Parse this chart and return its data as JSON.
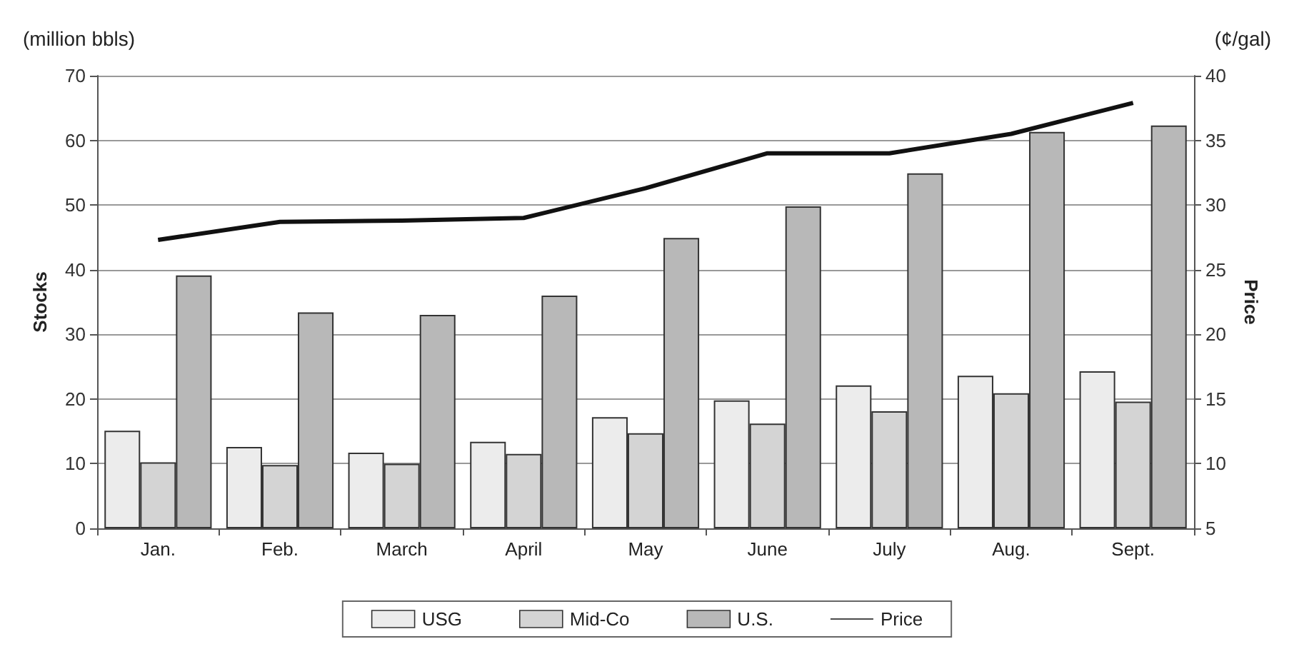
{
  "chart_data": {
    "type": "bar",
    "categories": [
      "Jan.",
      "Feb.",
      "March",
      "April",
      "May",
      "June",
      "July",
      "Aug.",
      "Sept."
    ],
    "ylabel": "Stocks",
    "y2label": "Price",
    "annotations": [
      "(million bbls)",
      "(¢/gal)"
    ],
    "series": [
      {
        "name": "USG",
        "color": "#ececec",
        "values": [
          15.1,
          12.6,
          11.7,
          13.4,
          17.2,
          19.8,
          22.1,
          23.6,
          24.3
        ]
      },
      {
        "name": "Mid-Co",
        "color": "#d4d4d4",
        "values": [
          10.2,
          9.8,
          10,
          11.5,
          14.7,
          16.2,
          18.1,
          20.9,
          19.6
        ]
      },
      {
        "name": "U.S.",
        "color": "#b8b8b8",
        "values": [
          39.1,
          33.4,
          33,
          36,
          44.9,
          49.8,
          54.9,
          61.3,
          62.3
        ]
      },
      {
        "name": "Price",
        "type": "line",
        "axis": "y2",
        "color": "#111111",
        "values": [
          27.3,
          28.7,
          28.8,
          29,
          31.3,
          34,
          34,
          35.5,
          37.9
        ]
      }
    ],
    "ylim": [
      0,
      70
    ],
    "yticks": [
      0,
      10,
      20,
      30,
      40,
      50,
      60,
      70
    ],
    "y2lim": [
      5,
      40
    ],
    "y2ticks": [
      5,
      10,
      15,
      20,
      25,
      30,
      35,
      40
    ],
    "grid": "y",
    "legend": "bottom",
    "marker": "none",
    "line_style": "solid"
  }
}
